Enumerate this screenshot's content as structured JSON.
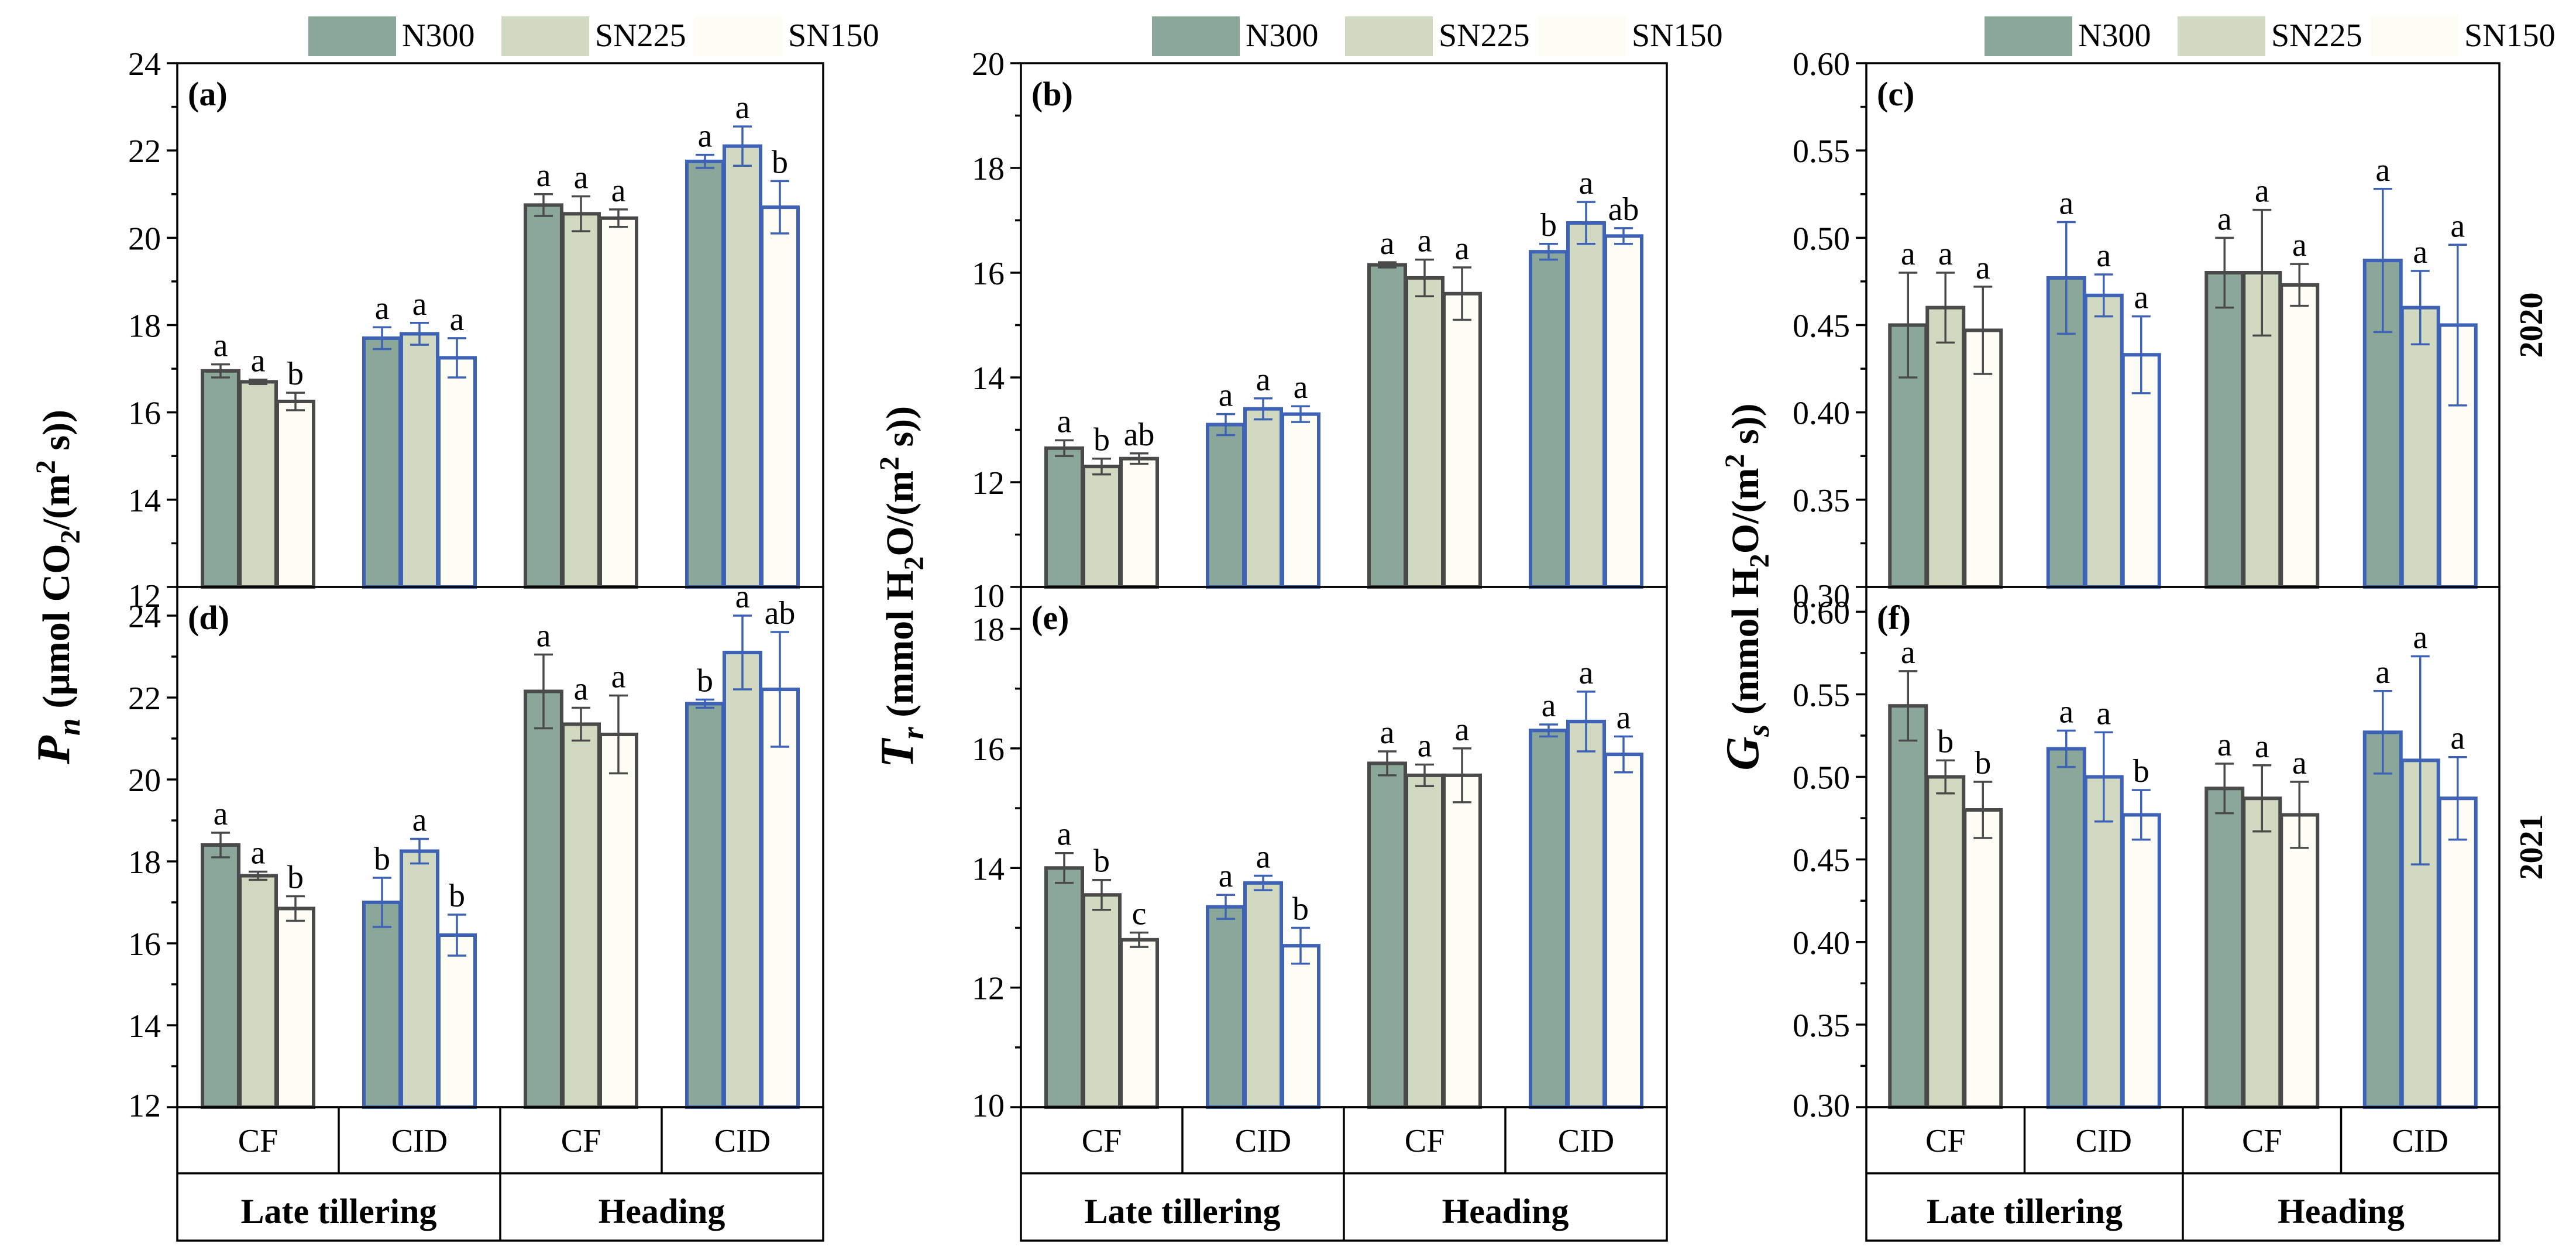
{
  "chart_data": {
    "type": "bar",
    "legend": [
      "N300",
      "SN225",
      "SN150"
    ],
    "group_labels": [
      "CF",
      "CID",
      "CF",
      "CID"
    ],
    "stage_labels": [
      "Late tillering",
      "Heading"
    ],
    "year_labels": [
      "2020",
      "2021"
    ],
    "colors": {
      "fills": [
        "#8aa79a",
        "#d1dac0",
        "#fdfcf5"
      ],
      "cf_edge": "#4a4a4a",
      "cid_edge": "#3d62b6"
    },
    "panels": [
      {
        "tag": "(a)",
        "ylim": [
          12,
          24
        ],
        "yticks": [
          "12",
          "14",
          "16",
          "18",
          "20",
          "22",
          "24"
        ],
        "values": [
          [
            16.95,
            16.7,
            16.25
          ],
          [
            17.7,
            17.8,
            17.25
          ],
          [
            20.75,
            20.55,
            20.45
          ],
          [
            21.75,
            22.1,
            20.7
          ]
        ],
        "errors": [
          [
            0.15,
            0.05,
            0.2
          ],
          [
            0.25,
            0.25,
            0.45
          ],
          [
            0.25,
            0.4,
            0.2
          ],
          [
            0.15,
            0.45,
            0.6
          ]
        ],
        "letters": [
          [
            "a",
            "a",
            "b"
          ],
          [
            "a",
            "a",
            "a"
          ],
          [
            "a",
            "a",
            "a"
          ],
          [
            "a",
            "a",
            "b"
          ]
        ]
      },
      {
        "tag": "(b)",
        "ylim": [
          10,
          20
        ],
        "yticks": [
          "10",
          "12",
          "14",
          "16",
          "18",
          "20"
        ],
        "values": [
          [
            12.65,
            12.3,
            12.45
          ],
          [
            13.1,
            13.4,
            13.3
          ],
          [
            16.15,
            15.9,
            15.6
          ],
          [
            16.4,
            16.95,
            16.7
          ]
        ],
        "errors": [
          [
            0.15,
            0.15,
            0.1
          ],
          [
            0.2,
            0.2,
            0.15
          ],
          [
            0.05,
            0.35,
            0.5
          ],
          [
            0.15,
            0.4,
            0.15
          ]
        ],
        "letters": [
          [
            "a",
            "b",
            "ab"
          ],
          [
            "a",
            "a",
            "a"
          ],
          [
            "a",
            "a",
            "a"
          ],
          [
            "b",
            "a",
            "ab"
          ]
        ]
      },
      {
        "tag": "(c)",
        "ylim": [
          0.3,
          0.6
        ],
        "yticks": [
          "0.30",
          "0.35",
          "0.40",
          "0.45",
          "0.50",
          "0.55",
          "0.60"
        ],
        "values": [
          [
            0.45,
            0.46,
            0.447
          ],
          [
            0.477,
            0.467,
            0.433
          ],
          [
            0.48,
            0.48,
            0.473
          ],
          [
            0.487,
            0.46,
            0.45
          ]
        ],
        "errors": [
          [
            0.03,
            0.02,
            0.025
          ],
          [
            0.032,
            0.012,
            0.022
          ],
          [
            0.02,
            0.036,
            0.012
          ],
          [
            0.041,
            0.021,
            0.046
          ]
        ],
        "letters": [
          [
            "a",
            "a",
            "a"
          ],
          [
            "a",
            "a",
            "a"
          ],
          [
            "a",
            "a",
            "a"
          ],
          [
            "a",
            "a",
            "a"
          ]
        ]
      },
      {
        "tag": "(d)",
        "ylim": [
          12,
          24.7
        ],
        "yticks": [
          "12",
          "14",
          "16",
          "18",
          "20",
          "22",
          "24"
        ],
        "values": [
          [
            18.4,
            17.65,
            16.85
          ],
          [
            17.0,
            18.25,
            16.2
          ],
          [
            22.15,
            21.35,
            21.1
          ],
          [
            21.85,
            23.1,
            22.2
          ]
        ],
        "errors": [
          [
            0.3,
            0.1,
            0.3
          ],
          [
            0.6,
            0.3,
            0.5
          ],
          [
            0.9,
            0.4,
            0.95
          ],
          [
            0.1,
            0.9,
            1.4
          ]
        ],
        "letters": [
          [
            "a",
            "a",
            "b"
          ],
          [
            "b",
            "a",
            "b"
          ],
          [
            "a",
            "a",
            "a"
          ],
          [
            "b",
            "a",
            "ab"
          ]
        ]
      },
      {
        "tag": "(e)",
        "ylim": [
          10,
          18.7
        ],
        "yticks": [
          "10",
          "12",
          "14",
          "16",
          "18"
        ],
        "values": [
          [
            14.0,
            13.55,
            12.8
          ],
          [
            13.35,
            13.75,
            12.7
          ],
          [
            15.75,
            15.55,
            15.55
          ],
          [
            16.3,
            16.45,
            15.9
          ]
        ],
        "errors": [
          [
            0.25,
            0.25,
            0.12
          ],
          [
            0.2,
            0.12,
            0.3
          ],
          [
            0.2,
            0.18,
            0.45
          ],
          [
            0.1,
            0.5,
            0.3
          ]
        ],
        "letters": [
          [
            "a",
            "b",
            "c"
          ],
          [
            "a",
            "a",
            "b"
          ],
          [
            "a",
            "a",
            "a"
          ],
          [
            "a",
            "a",
            "a"
          ]
        ]
      },
      {
        "tag": "(f)",
        "ylim": [
          0.3,
          0.615
        ],
        "yticks": [
          "0.30",
          "0.35",
          "0.40",
          "0.45",
          "0.50",
          "0.55",
          "0.60"
        ],
        "values": [
          [
            0.543,
            0.5,
            0.48
          ],
          [
            0.517,
            0.5,
            0.477
          ],
          [
            0.493,
            0.487,
            0.477
          ],
          [
            0.527,
            0.51,
            0.487
          ]
        ],
        "errors": [
          [
            0.021,
            0.01,
            0.017
          ],
          [
            0.011,
            0.027,
            0.015
          ],
          [
            0.015,
            0.02,
            0.02
          ],
          [
            0.025,
            0.063,
            0.025
          ]
        ],
        "letters": [
          [
            "a",
            "b",
            "b"
          ],
          [
            "a",
            "a",
            "b"
          ],
          [
            "a",
            "a",
            "a"
          ],
          [
            "a",
            "a",
            "a"
          ]
        ]
      }
    ],
    "ylabels": [
      {
        "main": "P",
        "sub": "n",
        "unit1": "(μmol CO",
        "sub2": "2",
        "unit2": "/(m",
        "sup": "2",
        "unit3": " s))"
      },
      {
        "main": "T",
        "sub": "r",
        "unit1": "(mmol H",
        "sub2": "2",
        "unit2": "O/(m",
        "sup": "2",
        "unit3": " s))"
      },
      {
        "main": "G",
        "sub": "s",
        "unit1": "(mmol H",
        "sub2": "2",
        "unit2": "O/(m",
        "sup": "2",
        "unit3": " s))"
      }
    ]
  }
}
